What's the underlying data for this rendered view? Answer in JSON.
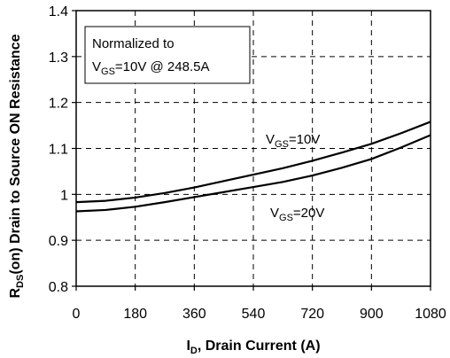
{
  "chart_data": {
    "type": "line",
    "x": [
      0,
      90,
      180,
      270,
      360,
      450,
      540,
      630,
      720,
      810,
      900,
      990,
      1080
    ],
    "series": [
      {
        "label_main": "V",
        "label_sub": "GS",
        "label_rest": "=10V",
        "values": [
          0.983,
          0.986,
          0.993,
          1.003,
          1.015,
          1.029,
          1.043,
          1.057,
          1.073,
          1.091,
          1.11,
          1.133,
          1.158
        ]
      },
      {
        "label_main": "V",
        "label_sub": "GS",
        "label_rest": "=20V",
        "values": [
          0.963,
          0.966,
          0.973,
          0.983,
          0.994,
          1.005,
          1.016,
          1.027,
          1.041,
          1.058,
          1.077,
          1.102,
          1.129
        ]
      }
    ],
    "xlim": [
      0,
      1080
    ],
    "ylim": [
      0.8,
      1.4
    ],
    "x_ticks": [
      "0",
      "180",
      "360",
      "540",
      "720",
      "900",
      "1080"
    ],
    "y_ticks": [
      "0.8",
      "0.9",
      "1",
      "1.1",
      "1.2",
      "1.3",
      "1.4"
    ],
    "x_tick_values": [
      0,
      180,
      360,
      540,
      720,
      900,
      1080
    ],
    "y_tick_values": [
      0.8,
      0.9,
      1.0,
      1.1,
      1.2,
      1.3,
      1.4
    ],
    "xlabel": {
      "main": "I",
      "sub": "D",
      "rest": ", Drain Current (A)"
    },
    "ylabel": {
      "main": "R",
      "sub": "DS",
      "rest": "(on) Drain to Source ON Resistance"
    },
    "annotation": {
      "line1": "Normalized to",
      "line2_main": "V",
      "line2_sub": "GS",
      "line2_rest": "=10V @ 248.5A"
    },
    "grid": "dashed",
    "line_color": "#000000"
  }
}
